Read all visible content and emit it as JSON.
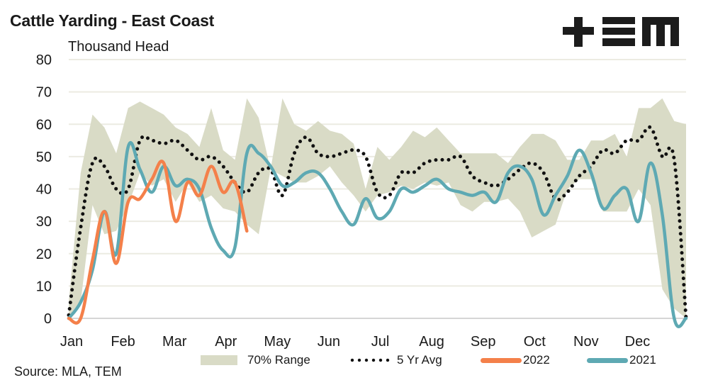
{
  "header": {
    "title": "Cattle Yarding - East Coast",
    "unit_label": "Thousand Head",
    "logo_text": "+EM"
  },
  "footer": {
    "source": "Source: MLA, TEM"
  },
  "colors": {
    "range": "#d9dbc6",
    "avg": "#111111",
    "y2022": "#f4804a",
    "y2021": "#5ea9b3",
    "grid": "#ecebe2"
  },
  "chart_data": {
    "type": "line",
    "title": "Cattle Yarding - East Coast",
    "xlabel": "",
    "ylabel": "Thousand Head",
    "ylim": [
      0,
      80
    ],
    "yticks": [
      0,
      10,
      20,
      30,
      40,
      50,
      60,
      70,
      80
    ],
    "xticks": [
      "Jan",
      "Feb",
      "Mar",
      "Apr",
      "May",
      "Jun",
      "Jul",
      "Aug",
      "Sep",
      "Oct",
      "Nov",
      "Dec"
    ],
    "x_unit": "week of year (0-52)",
    "grid": true,
    "legend_position": "bottom",
    "legend": [
      "70% Range",
      "5 Yr Avg",
      "2022",
      "2021"
    ],
    "series": [
      {
        "name": "70% Range",
        "type": "area-band",
        "upper": [
          5,
          45,
          63,
          59,
          51,
          65,
          67,
          65,
          63,
          59,
          57,
          53,
          65,
          52,
          49,
          68,
          62,
          46,
          68,
          60,
          58,
          61,
          58,
          57,
          54,
          40,
          53,
          49,
          53,
          58,
          56,
          59,
          55,
          51,
          51,
          51,
          51,
          48,
          53,
          57,
          57,
          55,
          49,
          49,
          55,
          55,
          57,
          50,
          65,
          65,
          68,
          61,
          60
        ],
        "lower": [
          0,
          5,
          35,
          26,
          27,
          35,
          45,
          41,
          43,
          36,
          42,
          36,
          38,
          34,
          33,
          29,
          26,
          46,
          44,
          42,
          42,
          44,
          47,
          42,
          38,
          33,
          38,
          39,
          41,
          40,
          42,
          41,
          42,
          35,
          33,
          36,
          36,
          37,
          33,
          25,
          27,
          29,
          40,
          43,
          43,
          33,
          33,
          33,
          40,
          35,
          9,
          3,
          0
        ]
      },
      {
        "name": "5 Yr Avg",
        "type": "dotted-line",
        "values": [
          1,
          28,
          48,
          47,
          40,
          40,
          55,
          55,
          54,
          55,
          52,
          49,
          50,
          47,
          42,
          39,
          45,
          46,
          38,
          51,
          56,
          51,
          50,
          51,
          52,
          50,
          39,
          38,
          45,
          45,
          48,
          49,
          49,
          50,
          44,
          42,
          41,
          43,
          46,
          48,
          45,
          37,
          39,
          44,
          47,
          52,
          51,
          55,
          55,
          59,
          50,
          49,
          0
        ]
      },
      {
        "name": "2022",
        "type": "line",
        "values": [
          0,
          0,
          18,
          33,
          17,
          36,
          37,
          43,
          48,
          30,
          42,
          38,
          47,
          39,
          42,
          27
        ]
      },
      {
        "name": "2021",
        "type": "line",
        "values": [
          0,
          5,
          15,
          33,
          20,
          53,
          46,
          39,
          47,
          41,
          43,
          40,
          28,
          21,
          22,
          51,
          51,
          47,
          41,
          42,
          45,
          45,
          40,
          33,
          29,
          37,
          31,
          33,
          40,
          39,
          41,
          43,
          40,
          39,
          38,
          39,
          36,
          45,
          47,
          43,
          32,
          38,
          44,
          52,
          45,
          34,
          38,
          40,
          30,
          48,
          32,
          0,
          0
        ]
      }
    ]
  }
}
